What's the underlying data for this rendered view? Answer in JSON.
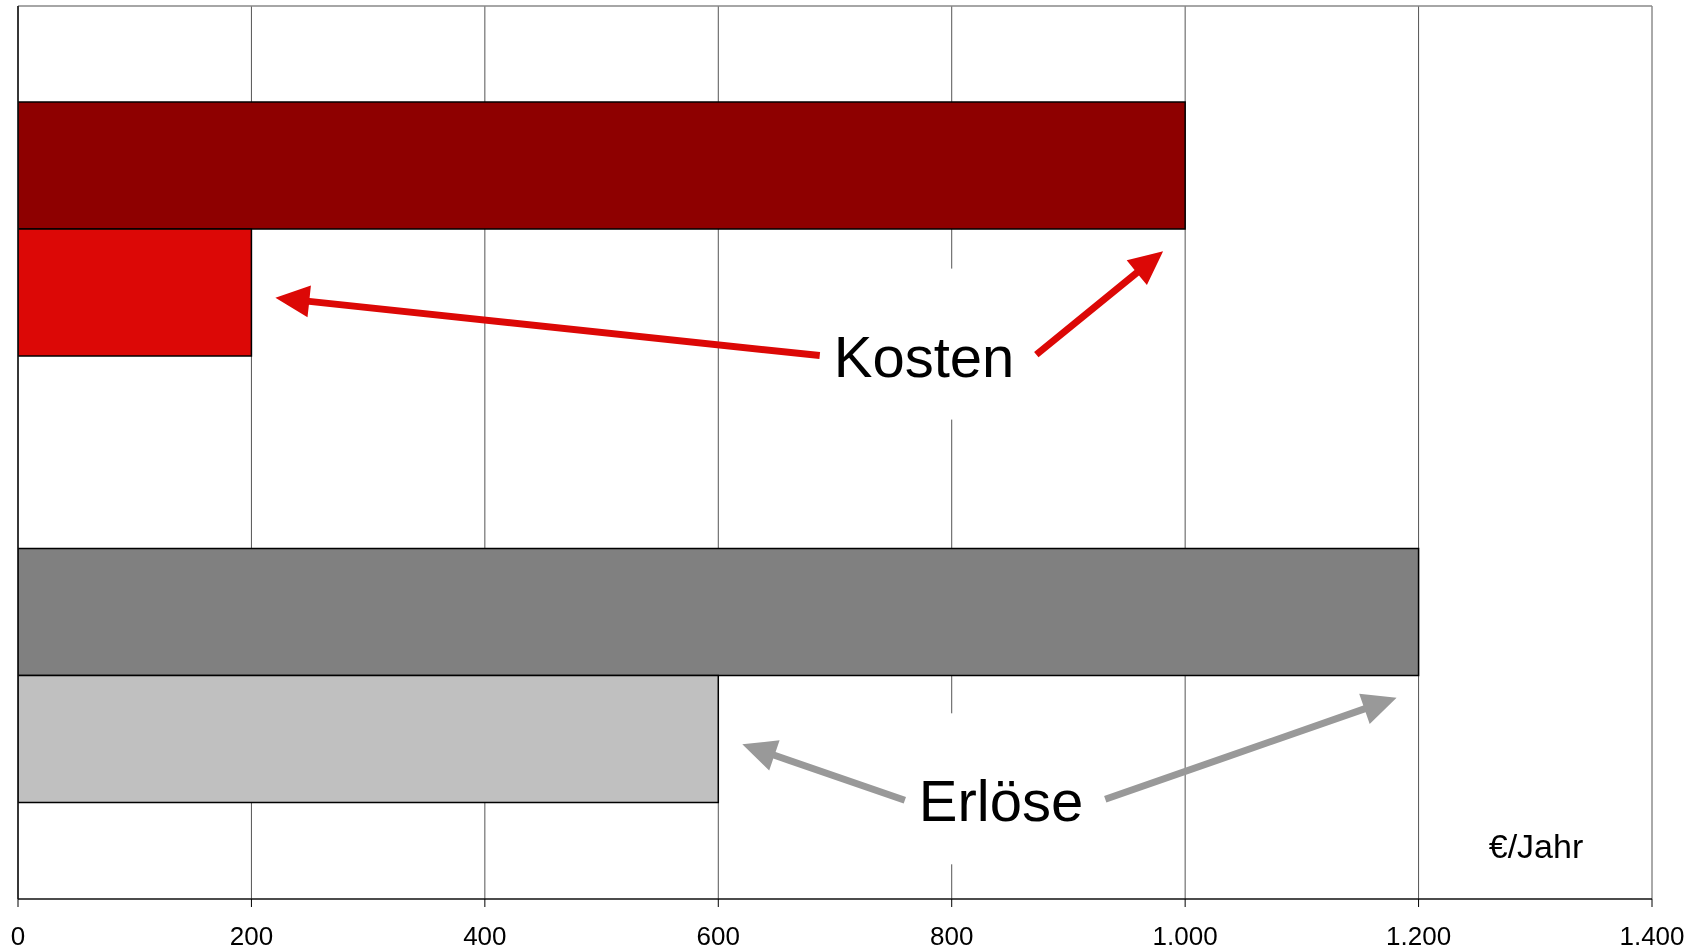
{
  "chart_data": {
    "type": "bar",
    "orientation": "horizontal",
    "categories": [
      null,
      null
    ],
    "series": [
      {
        "values": [
          1000,
          1200
        ],
        "colors": [
          "#8e0000",
          "#808080"
        ]
      },
      {
        "values": [
          200,
          600
        ],
        "colors": [
          "#dc0806",
          "#c0c0c0"
        ]
      }
    ],
    "xlabel": "€/Jahr",
    "annotations": [
      "Kosten",
      "Erlöse"
    ],
    "xlim": [
      0,
      1400
    ],
    "xticks": [
      0,
      200,
      400,
      600,
      800,
      {
        "value": 1000,
        "label": "1.000"
      },
      {
        "value": 1200,
        "label": "1.200"
      },
      {
        "value": 1400,
        "label": "1.400"
      }
    ],
    "grid": "x",
    "tick_labels": "x"
  }
}
